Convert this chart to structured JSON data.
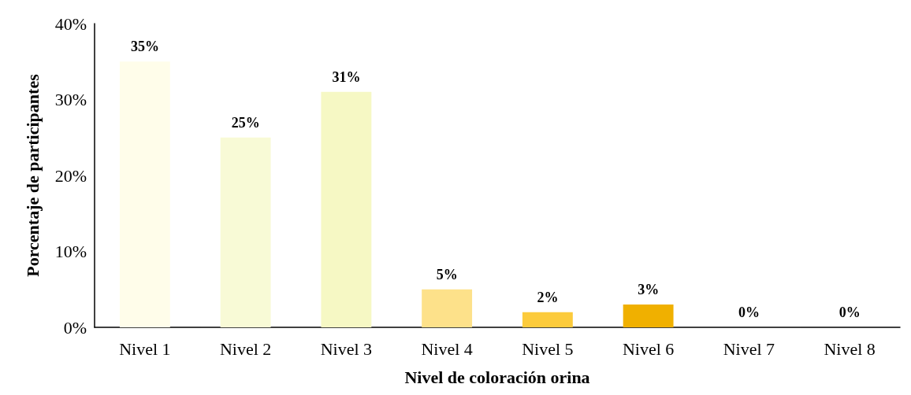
{
  "chart_data": {
    "type": "bar",
    "xlabel": "Nivel de coloración orina",
    "ylabel": "Porcentaje de participantes",
    "categories": [
      "Nivel 1",
      "Nivel 2",
      "Nivel 3",
      "Nivel 4",
      "Nivel 5",
      "Nivel 6",
      "Nivel 7",
      "Nivel 8"
    ],
    "values": [
      35,
      25,
      31,
      5,
      2,
      3,
      0,
      0
    ],
    "colors": [
      "#fffdea",
      "#f8fad6",
      "#f6f8c4",
      "#fde18a",
      "#fccb3c",
      "#f0b000",
      "#e8a000",
      "#d89000"
    ],
    "value_labels": [
      "35%",
      "25%",
      "31%",
      "5%",
      "2%",
      "3%",
      "0%",
      "0%"
    ],
    "ylim": [
      0,
      40
    ],
    "yticks": [
      {
        "value": 0,
        "label": "0%"
      },
      {
        "value": 10,
        "label": "10%"
      },
      {
        "value": 20,
        "label": "20%"
      },
      {
        "value": 30,
        "label": "30%"
      },
      {
        "value": 40,
        "label": "40%"
      }
    ],
    "grid": false
  }
}
